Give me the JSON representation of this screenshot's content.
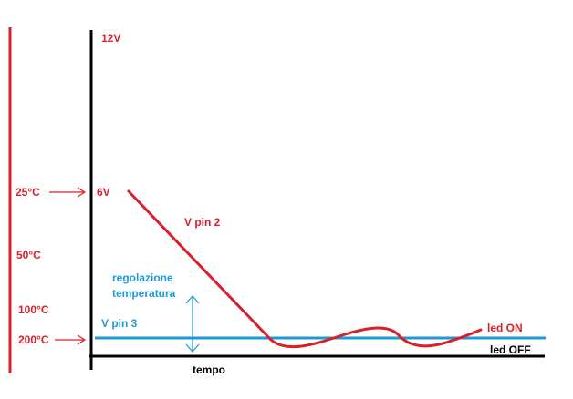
{
  "labels": {
    "v12": "12V",
    "v6": "6V",
    "t25": "25°C",
    "t50": "50°C",
    "t100": "100°C",
    "t200": "200°C",
    "vpin2": "V pin 2",
    "vpin3": "V pin 3",
    "reg1": "regolazione",
    "reg2": "temperatura",
    "led_on": "led ON",
    "led_off": "led OFF",
    "tempo": "tempo"
  },
  "colors": {
    "red": "#d9202a",
    "blue": "#1f9ad6",
    "black": "#000000"
  }
}
